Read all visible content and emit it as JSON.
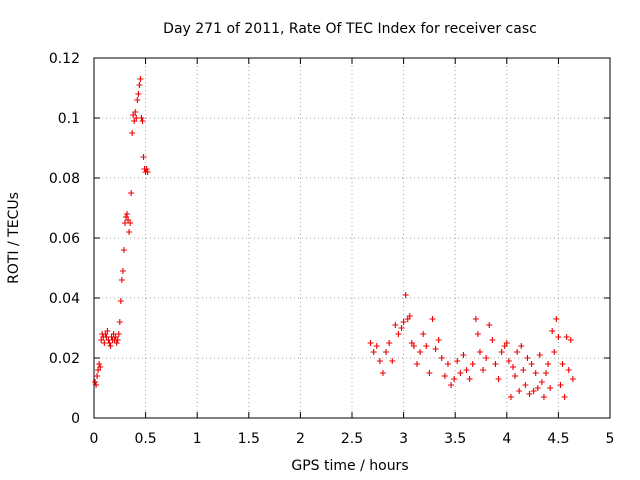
{
  "chart_data": {
    "type": "scatter",
    "title": "Day 271 of 2011, Rate Of TEC Index for receiver casc",
    "xlabel": "GPS time / hours",
    "ylabel": "ROTI / TECUs",
    "xlim": [
      0,
      5
    ],
    "ylim": [
      0,
      0.12
    ],
    "xticks": [
      "0",
      "0.5",
      "1",
      "1.5",
      "2",
      "2.5",
      "3",
      "3.5",
      "4",
      "4.5",
      "5"
    ],
    "yticks": [
      "0",
      "0.02",
      "0.04",
      "0.06",
      "0.08",
      "0.1",
      "0.12"
    ],
    "grid": true,
    "legend": "none",
    "marker": "+",
    "colors": {
      "points": "#ee0000",
      "grid": "#a0a0a0",
      "axes": "#000000"
    },
    "series": [
      {
        "name": "ROTI",
        "x": [
          0.01,
          0.02,
          0.03,
          0.04,
          0.05,
          0.06,
          0.07,
          0.08,
          0.09,
          0.1,
          0.11,
          0.12,
          0.13,
          0.14,
          0.15,
          0.16,
          0.17,
          0.18,
          0.19,
          0.2,
          0.21,
          0.22,
          0.23,
          0.24,
          0.25,
          0.26,
          0.27,
          0.28,
          0.29,
          0.3,
          0.31,
          0.32,
          0.33,
          0.34,
          0.35,
          0.36,
          0.37,
          0.38,
          0.39,
          0.4,
          0.41,
          0.42,
          0.43,
          0.44,
          0.45,
          0.46,
          0.47,
          0.48,
          0.49,
          0.5,
          0.51,
          0.52,
          2.68,
          2.71,
          2.74,
          2.77,
          2.8,
          2.83,
          2.86,
          2.89,
          2.92,
          2.95,
          2.98,
          3.0,
          3.02,
          3.04,
          3.06,
          3.08,
          3.1,
          3.13,
          3.16,
          3.19,
          3.22,
          3.25,
          3.28,
          3.31,
          3.34,
          3.37,
          3.4,
          3.43,
          3.46,
          3.49,
          3.52,
          3.55,
          3.58,
          3.61,
          3.64,
          3.67,
          3.7,
          3.72,
          3.74,
          3.77,
          3.8,
          3.83,
          3.86,
          3.89,
          3.92,
          3.95,
          3.98,
          4.0,
          4.02,
          4.04,
          4.06,
          4.08,
          4.1,
          4.12,
          4.14,
          4.16,
          4.18,
          4.2,
          4.22,
          4.24,
          4.26,
          4.28,
          4.3,
          4.32,
          4.34,
          4.36,
          4.38,
          4.4,
          4.42,
          4.44,
          4.46,
          4.48,
          4.5,
          4.52,
          4.54,
          4.56,
          4.58,
          4.6,
          4.62,
          4.64
        ],
        "y": [
          0.012,
          0.011,
          0.014,
          0.016,
          0.018,
          0.017,
          0.026,
          0.028,
          0.027,
          0.025,
          0.028,
          0.027,
          0.029,
          0.026,
          0.025,
          0.024,
          0.027,
          0.026,
          0.028,
          0.026,
          0.027,
          0.025,
          0.026,
          0.028,
          0.032,
          0.039,
          0.046,
          0.049,
          0.056,
          0.065,
          0.067,
          0.068,
          0.066,
          0.062,
          0.065,
          0.075,
          0.095,
          0.101,
          0.099,
          0.102,
          0.1,
          0.106,
          0.108,
          0.111,
          0.113,
          0.1,
          0.099,
          0.087,
          0.083,
          0.082,
          0.083,
          0.082,
          0.025,
          0.022,
          0.024,
          0.019,
          0.015,
          0.022,
          0.025,
          0.019,
          0.031,
          0.028,
          0.03,
          0.032,
          0.041,
          0.033,
          0.034,
          0.025,
          0.024,
          0.018,
          0.022,
          0.028,
          0.024,
          0.015,
          0.033,
          0.023,
          0.026,
          0.02,
          0.014,
          0.018,
          0.011,
          0.013,
          0.019,
          0.015,
          0.021,
          0.016,
          0.013,
          0.018,
          0.033,
          0.028,
          0.022,
          0.016,
          0.02,
          0.031,
          0.026,
          0.018,
          0.013,
          0.022,
          0.024,
          0.025,
          0.019,
          0.007,
          0.017,
          0.014,
          0.022,
          0.009,
          0.024,
          0.016,
          0.011,
          0.02,
          0.008,
          0.018,
          0.009,
          0.015,
          0.01,
          0.021,
          0.012,
          0.007,
          0.015,
          0.018,
          0.01,
          0.029,
          0.022,
          0.033,
          0.027,
          0.011,
          0.018,
          0.007,
          0.027,
          0.016,
          0.026,
          0.013
        ]
      }
    ]
  }
}
